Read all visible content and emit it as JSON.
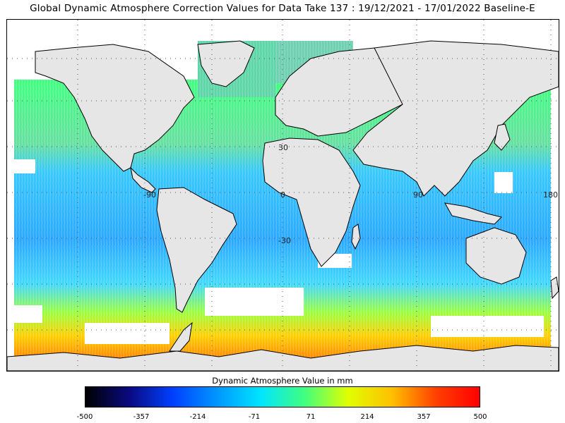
{
  "title": "Global Dynamic Atmosphere Correction Values for Data Take 137 : 19/12/2021 - 17/01/2022 Baseline-E",
  "map": {
    "longitude_labels": [
      "-90",
      "0",
      "90",
      "180"
    ],
    "latitude_labels": [
      "30",
      "-30"
    ],
    "land_color": "#e6e6e6",
    "coastline_color": "#000000",
    "grid": "dotted"
  },
  "legend": {
    "title": "Dynamic Atmosphere Value in mm",
    "tick_labels": [
      "-500",
      "-357",
      "-214",
      "-71",
      "71",
      "214",
      "357",
      "500"
    ],
    "colors": [
      "#000000",
      "#0a0a80",
      "#0040ff",
      "#0096ff",
      "#00e5ff",
      "#40ff80",
      "#e0ff00",
      "#ffc000",
      "#ff4000",
      "#ff0000"
    ]
  }
}
